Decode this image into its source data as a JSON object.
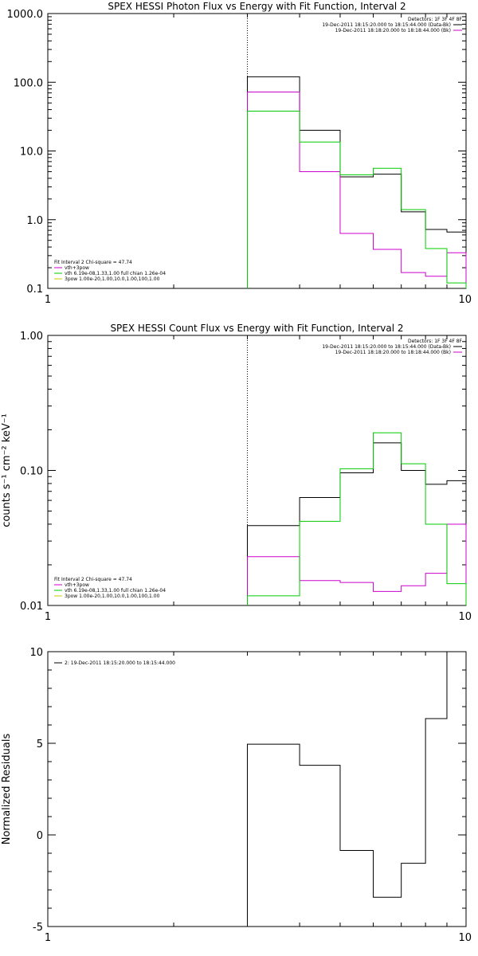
{
  "charts": [
    {
      "id": "photon",
      "title": "SPEX HESSI Photon Flux vs Energy with Fit Function, Interval 2",
      "ylabel": "",
      "xscale": "log",
      "yscale": "log",
      "xlim": [
        1,
        10
      ],
      "ylim": [
        0.1,
        1000
      ],
      "xticks": [
        {
          "v": 1,
          "label": "1"
        },
        {
          "v": 10,
          "label": "10"
        }
      ],
      "yticks": [
        {
          "v": 0.1,
          "label": "0.1"
        },
        {
          "v": 1,
          "label": "1.0"
        },
        {
          "v": 10,
          "label": "10.0"
        },
        {
          "v": 100,
          "label": "100.0"
        },
        {
          "v": 1000,
          "label": "1000.0"
        }
      ],
      "vline": {
        "x": 3.0,
        "style": "dotted"
      },
      "edges": [
        3.0,
        4.0,
        5.0,
        6.0,
        7.0,
        8.0,
        9.0,
        10.0
      ],
      "series": [
        {
          "color": "#000000",
          "values": [
            120,
            20,
            4.2,
            4.6,
            1.3,
            0.72,
            0.66
          ]
        },
        {
          "color": "#cc00cc",
          "values": [
            72,
            5.0,
            0.63,
            0.37,
            0.17,
            0.15,
            0.33
          ]
        },
        {
          "color": "#00cc00",
          "values": [
            38,
            13.5,
            4.5,
            5.6,
            1.4,
            0.38,
            0.12
          ]
        }
      ],
      "legend_top": {
        "header": "Detectors: 1F 3F 4F 8F",
        "entries": [
          {
            "text": "19-Dec-2011 18:15:20.000 to 18:15:44.000 (Data-Bk)",
            "color": "#000000"
          },
          {
            "text": "19-Dec-2011 18:18:20.000 to 18:18:44.000 (Bk)",
            "color": "#cc00cc"
          }
        ]
      },
      "legend_bottom": {
        "header": "Fit Interval 2   Chi-square = 47.74",
        "entries": [
          {
            "text": "vth+3pow",
            "color": "#cc00cc"
          },
          {
            "text": "vth 6.19e-08,1.33,1.00  full chian 1.26e-04",
            "color": "#00cc00"
          },
          {
            "text": "3pow 1.00e-20,1.00,10.0,1.00,100,1.00",
            "color": "#cccc00"
          }
        ]
      }
    },
    {
      "id": "count",
      "title": "SPEX HESSI Count Flux vs Energy with Fit Function, Interval 2",
      "ylabel": "counts s⁻¹ cm⁻² keV⁻¹",
      "xscale": "log",
      "yscale": "log",
      "xlim": [
        1,
        10
      ],
      "ylim": [
        0.01,
        1
      ],
      "xticks": [
        {
          "v": 1,
          "label": "1"
        },
        {
          "v": 10,
          "label": "10"
        }
      ],
      "yticks": [
        {
          "v": 0.01,
          "label": "0.01"
        },
        {
          "v": 0.1,
          "label": "0.10"
        },
        {
          "v": 1,
          "label": "1.00"
        }
      ],
      "vline": {
        "x": 3.0,
        "style": "dotted"
      },
      "edges": [
        3.0,
        4.0,
        5.0,
        6.0,
        7.0,
        8.0,
        9.0,
        10.0
      ],
      "series": [
        {
          "color": "#000000",
          "values": [
            0.039,
            0.063,
            0.096,
            0.16,
            0.1,
            0.079,
            0.084
          ]
        },
        {
          "color": "#cc00cc",
          "values": [
            0.023,
            0.0153,
            0.0148,
            0.0127,
            0.014,
            0.0173,
            0.04
          ]
        },
        {
          "color": "#00cc00",
          "values": [
            0.0118,
            0.042,
            0.103,
            0.19,
            0.112,
            0.04,
            0.0145
          ]
        }
      ],
      "legend_top": {
        "header": "Detectors: 1F 3F 4F 8F",
        "entries": [
          {
            "text": "19-Dec-2011 18:15:20.000 to 18:15:44.000 (Data-Bk)",
            "color": "#000000"
          },
          {
            "text": "19-Dec-2011 18:18:20.000 to 18:18:44.000 (Bk)",
            "color": "#cc00cc"
          }
        ]
      },
      "legend_bottom": {
        "header": "Fit Interval 2   Chi-square = 47.74",
        "entries": [
          {
            "text": "vth+3pow",
            "color": "#cc00cc"
          },
          {
            "text": "vth 6.19e-08,1.33,1.00  full chian 1.26e-04",
            "color": "#00cc00"
          },
          {
            "text": "3pow 1.00e-20,1.00,10.0,1.00,100,1.00",
            "color": "#cccc00"
          }
        ]
      }
    },
    {
      "id": "resid",
      "title": "",
      "ylabel": "Normalized Residuals",
      "xscale": "log",
      "yscale": "linear",
      "xlim": [
        1,
        10
      ],
      "ylim": [
        -5,
        10
      ],
      "xticks": [
        {
          "v": 1,
          "label": "1"
        },
        {
          "v": 10,
          "label": "10"
        }
      ],
      "yticks": [
        {
          "v": -5,
          "label": "-5"
        },
        {
          "v": 0,
          "label": "0"
        },
        {
          "v": 5,
          "label": "5"
        },
        {
          "v": 10,
          "label": "10"
        }
      ],
      "edges": [
        3.0,
        4.0,
        5.0,
        6.0,
        7.0,
        8.0,
        9.0,
        10.0
      ],
      "series": [
        {
          "color": "#000000",
          "values": [
            4.95,
            3.8,
            -0.85,
            -3.4,
            -1.55,
            6.35,
            10.1
          ]
        }
      ],
      "legend_top": {
        "header": "",
        "entries": [
          {
            "text": "2: 19-Dec-2011 18:15:20.000 to 18:15:44.000",
            "color": "#000000"
          }
        ]
      }
    }
  ]
}
